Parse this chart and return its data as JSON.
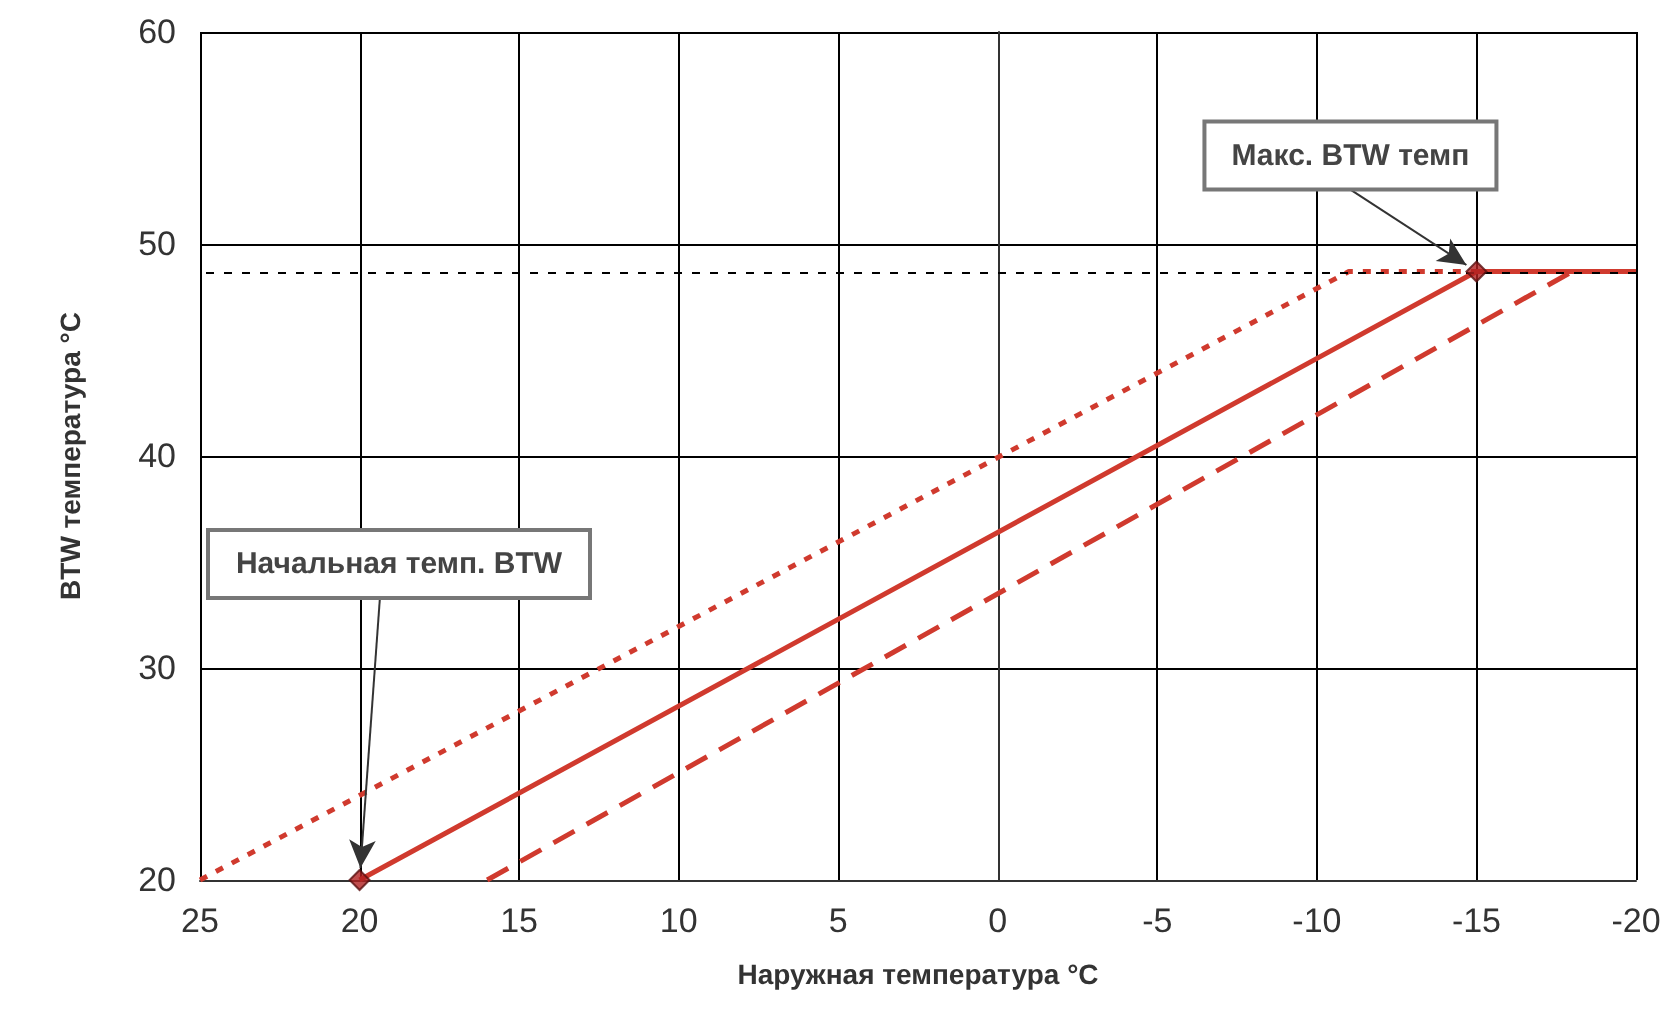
{
  "chart_data": {
    "type": "line",
    "xlabel": "Наружная температура °C",
    "ylabel": "BTW температура °C",
    "xlim": [
      25,
      -20
    ],
    "xticks": [
      25,
      20,
      15,
      10,
      5,
      0,
      -5,
      -10,
      -15,
      -20
    ],
    "ylim": [
      20,
      60
    ],
    "yticks": [
      20,
      30,
      40,
      50,
      60
    ],
    "grid": true,
    "series": [
      {
        "color": "#d03a2e",
        "line_style": "dotted",
        "marker": "none",
        "x": [
          25,
          -11,
          -15
        ],
        "values": [
          20,
          48.7,
          48.7
        ]
      },
      {
        "color": "#d03a2e",
        "line_style": "solid",
        "marker": "none",
        "x": [
          20,
          -15,
          -20
        ],
        "values": [
          20,
          48.7,
          48.7
        ]
      },
      {
        "color": "#d03a2e",
        "line_style": "dashed",
        "marker": "none",
        "x": [
          16,
          -18,
          -20
        ],
        "values": [
          20,
          48.7,
          48.7
        ]
      },
      {
        "type": "scatter",
        "color": "#b02020",
        "marker": "diamond",
        "x": [
          20,
          -15
        ],
        "values": [
          20,
          48.7
        ]
      }
    ],
    "ref_lines": [
      {
        "axis": "y",
        "value": 48.7,
        "label": null,
        "color": "#000000",
        "line_style": "dotted"
      }
    ],
    "annotations": [
      {
        "text": "Начальная темп. BTW",
        "x": 20,
        "y": 20
      },
      {
        "text": "Макс. BTW темп",
        "x": -15,
        "y": 48.7
      }
    ]
  }
}
